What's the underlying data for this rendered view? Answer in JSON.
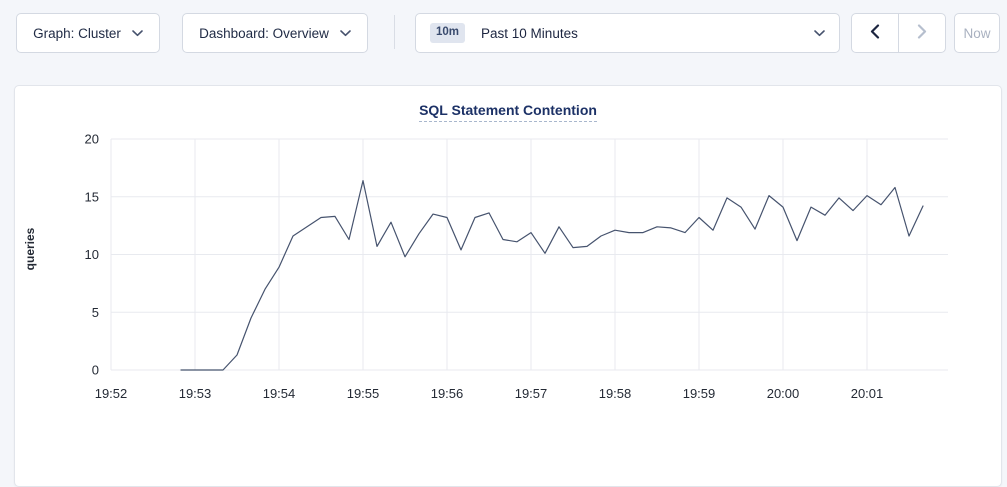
{
  "toolbar": {
    "graph_dropdown_label": "Graph: Cluster",
    "dashboard_dropdown_label": "Dashboard: Overview",
    "time_window_badge": "10m",
    "time_window_label": "Past 10 Minutes",
    "now_button_label": "Now"
  },
  "chart_data": {
    "type": "line",
    "title": "SQL Statement Contention",
    "ylabel": "queries",
    "ylim": [
      0,
      20
    ],
    "yticks": [
      0,
      5,
      10,
      15,
      20
    ],
    "xtick_labels": [
      "19:52",
      "19:53",
      "19:54",
      "19:55",
      "19:56",
      "19:57",
      "19:58",
      "19:59",
      "20:00",
      "20:01"
    ],
    "grid": true,
    "legend_position": "none",
    "series": [
      {
        "name": "queries",
        "start_time": "19:52:50",
        "interval_seconds": 10,
        "values": [
          0,
          0,
          0,
          0,
          1.3,
          4.5,
          7.0,
          8.9,
          11.6,
          12.4,
          13.2,
          13.3,
          11.3,
          16.4,
          10.7,
          12.8,
          9.8,
          11.8,
          13.5,
          13.2,
          10.4,
          13.2,
          13.6,
          11.3,
          11.1,
          11.9,
          10.1,
          12.4,
          10.6,
          10.7,
          11.6,
          12.1,
          11.9,
          11.9,
          12.4,
          12.3,
          11.9,
          13.2,
          12.1,
          14.9,
          14.1,
          12.2,
          15.1,
          14.1,
          11.2,
          14.1,
          13.4,
          14.9,
          13.8,
          15.1,
          14.3,
          15.8,
          11.6,
          14.2
        ]
      }
    ],
    "line_color": "#46536e"
  },
  "colors": {
    "page_bg": "#f4f6fa",
    "card_bg": "#ffffff",
    "card_border": "#e2e5eb",
    "control_border": "#d4d9e2",
    "control_text": "#1f2a44",
    "disabled_icon": "#b6bfce",
    "enabled_icon": "#1c2540",
    "caret_color": "#47536e",
    "badge_bg": "#e0e5ef",
    "grid_color": "#e8eaef",
    "axis_text": "#242a35",
    "title_color": "#1c3166"
  }
}
